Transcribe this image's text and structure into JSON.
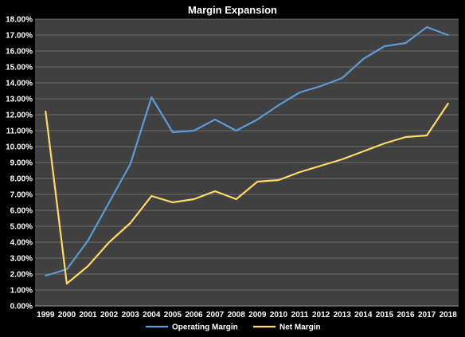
{
  "chart_data": {
    "type": "line",
    "title": "Margin Expansion",
    "xlabel": "",
    "ylabel": "",
    "ylim": [
      0,
      18
    ],
    "y_tick_labels": [
      "0.00%",
      "1.00%",
      "2.00%",
      "3.00%",
      "4.00%",
      "5.00%",
      "6.00%",
      "7.00%",
      "8.00%",
      "9.00%",
      "10.00%",
      "11.00%",
      "12.00%",
      "13.00%",
      "14.00%",
      "15.00%",
      "16.00%",
      "17.00%",
      "18.00%"
    ],
    "categories": [
      "1999",
      "2000",
      "2001",
      "2002",
      "2003",
      "2004",
      "2005",
      "2006",
      "2007",
      "2008",
      "2009",
      "2010",
      "2011",
      "2012",
      "2013",
      "2014",
      "2015",
      "2016",
      "2017",
      "2018"
    ],
    "grid": true,
    "legend": "bottom",
    "series": [
      {
        "name": "Operating Margin",
        "color": "#5b9bd5",
        "values": [
          1.9,
          2.3,
          4.1,
          6.5,
          8.9,
          13.1,
          10.9,
          11.0,
          11.7,
          11.0,
          11.7,
          12.6,
          13.4,
          13.8,
          14.3,
          15.5,
          16.3,
          16.5,
          17.5,
          17.0
        ]
      },
      {
        "name": "Net Margin",
        "color": "#ffd966",
        "values": [
          12.2,
          1.4,
          2.5,
          4.0,
          5.2,
          6.9,
          6.5,
          6.7,
          7.2,
          6.7,
          7.8,
          7.9,
          8.4,
          8.8,
          9.2,
          9.7,
          10.2,
          10.6,
          10.7,
          12.7
        ]
      }
    ]
  }
}
